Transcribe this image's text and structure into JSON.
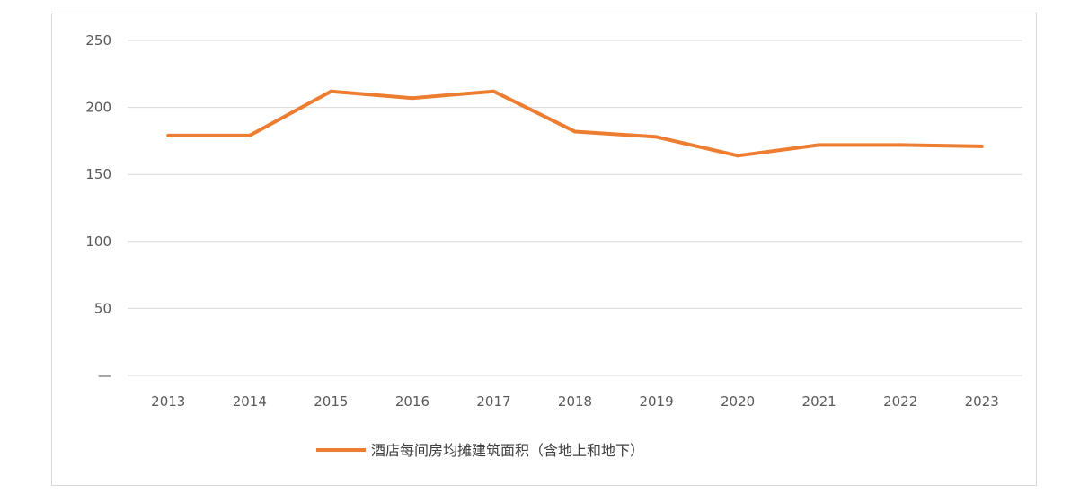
{
  "chart_data": {
    "type": "line",
    "title": "",
    "xlabel": "",
    "ylabel": "",
    "categories": [
      "2013",
      "2014",
      "2015",
      "2016",
      "2017",
      "2018",
      "2019",
      "2020",
      "2021",
      "2022",
      "2023"
    ],
    "series": [
      {
        "name": "酒店每间房均摊建筑面积（含地上和地下）",
        "values": [
          179,
          179,
          212,
          207,
          212,
          182,
          178,
          164,
          172,
          172,
          171
        ],
        "color": "#ED7D31"
      }
    ],
    "ylim": [
      0,
      250
    ],
    "yticks": [
      "—",
      "50",
      "100",
      "150",
      "200",
      "250"
    ],
    "grid": true,
    "legend_position": "bottom"
  }
}
